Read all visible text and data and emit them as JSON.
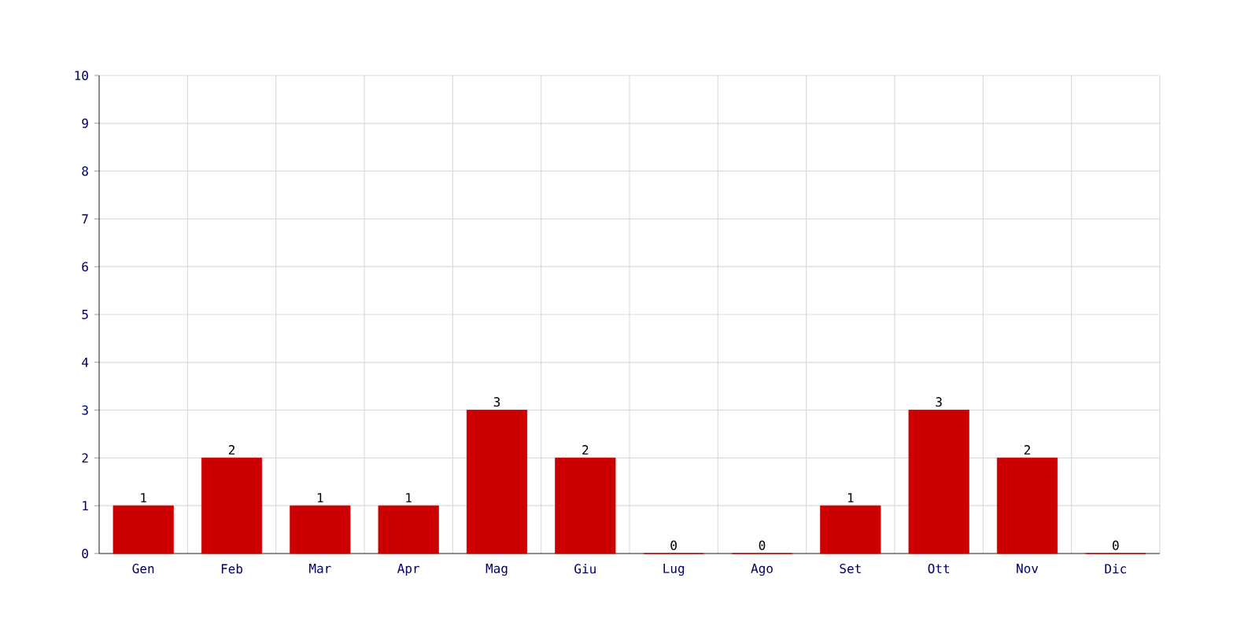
{
  "chart_data": {
    "type": "bar",
    "categories": [
      "Gen",
      "Feb",
      "Mar",
      "Apr",
      "Mag",
      "Giu",
      "Lug",
      "Ago",
      "Set",
      "Ott",
      "Nov",
      "Dic"
    ],
    "values": [
      1,
      2,
      1,
      1,
      3,
      2,
      0,
      0,
      1,
      3,
      2,
      0
    ],
    "color": "#cc0000",
    "ylim": [
      0,
      10
    ],
    "yticks": [
      0,
      1,
      2,
      3,
      4,
      5,
      6,
      7,
      8,
      9,
      10
    ],
    "grid": true,
    "data_labels": true
  }
}
